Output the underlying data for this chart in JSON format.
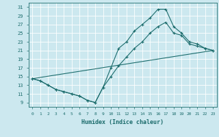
{
  "xlabel": "Humidex (Indice chaleur)",
  "xlim": [
    -0.5,
    23.5
  ],
  "ylim": [
    8,
    32
  ],
  "yticks": [
    9,
    11,
    13,
    15,
    17,
    19,
    21,
    23,
    25,
    27,
    29,
    31
  ],
  "xticks": [
    0,
    1,
    2,
    3,
    4,
    5,
    6,
    7,
    8,
    9,
    10,
    11,
    12,
    13,
    14,
    15,
    16,
    17,
    18,
    19,
    20,
    21,
    22,
    23
  ],
  "bg_color": "#cce8ef",
  "line_color": "#1a6b6b",
  "line1_x": [
    0,
    1,
    2,
    3,
    4,
    5,
    6,
    7,
    8,
    9,
    10,
    11,
    12,
    13,
    14,
    15,
    16,
    17,
    18,
    19,
    20,
    21,
    22,
    23
  ],
  "line1_y": [
    14.5,
    14.0,
    13.0,
    12.0,
    11.5,
    11.0,
    10.5,
    9.5,
    9.0,
    12.5,
    17.0,
    21.5,
    23.0,
    25.5,
    27.0,
    28.5,
    30.5,
    30.5,
    26.5,
    25.0,
    23.0,
    22.5,
    21.5,
    21.0
  ],
  "line2_x": [
    0,
    1,
    2,
    3,
    4,
    5,
    6,
    7,
    8,
    9,
    10,
    11,
    12,
    13,
    14,
    15,
    16,
    17,
    18,
    19,
    20,
    21,
    22,
    23
  ],
  "line2_y": [
    14.5,
    14.0,
    13.0,
    12.0,
    11.5,
    11.0,
    10.5,
    9.5,
    9.0,
    12.5,
    15.0,
    17.5,
    19.5,
    21.5,
    23.0,
    25.0,
    26.5,
    27.5,
    25.0,
    24.5,
    22.5,
    22.0,
    21.5,
    21.0
  ],
  "line3_x": [
    0,
    23
  ],
  "line3_y": [
    14.5,
    21.0
  ]
}
